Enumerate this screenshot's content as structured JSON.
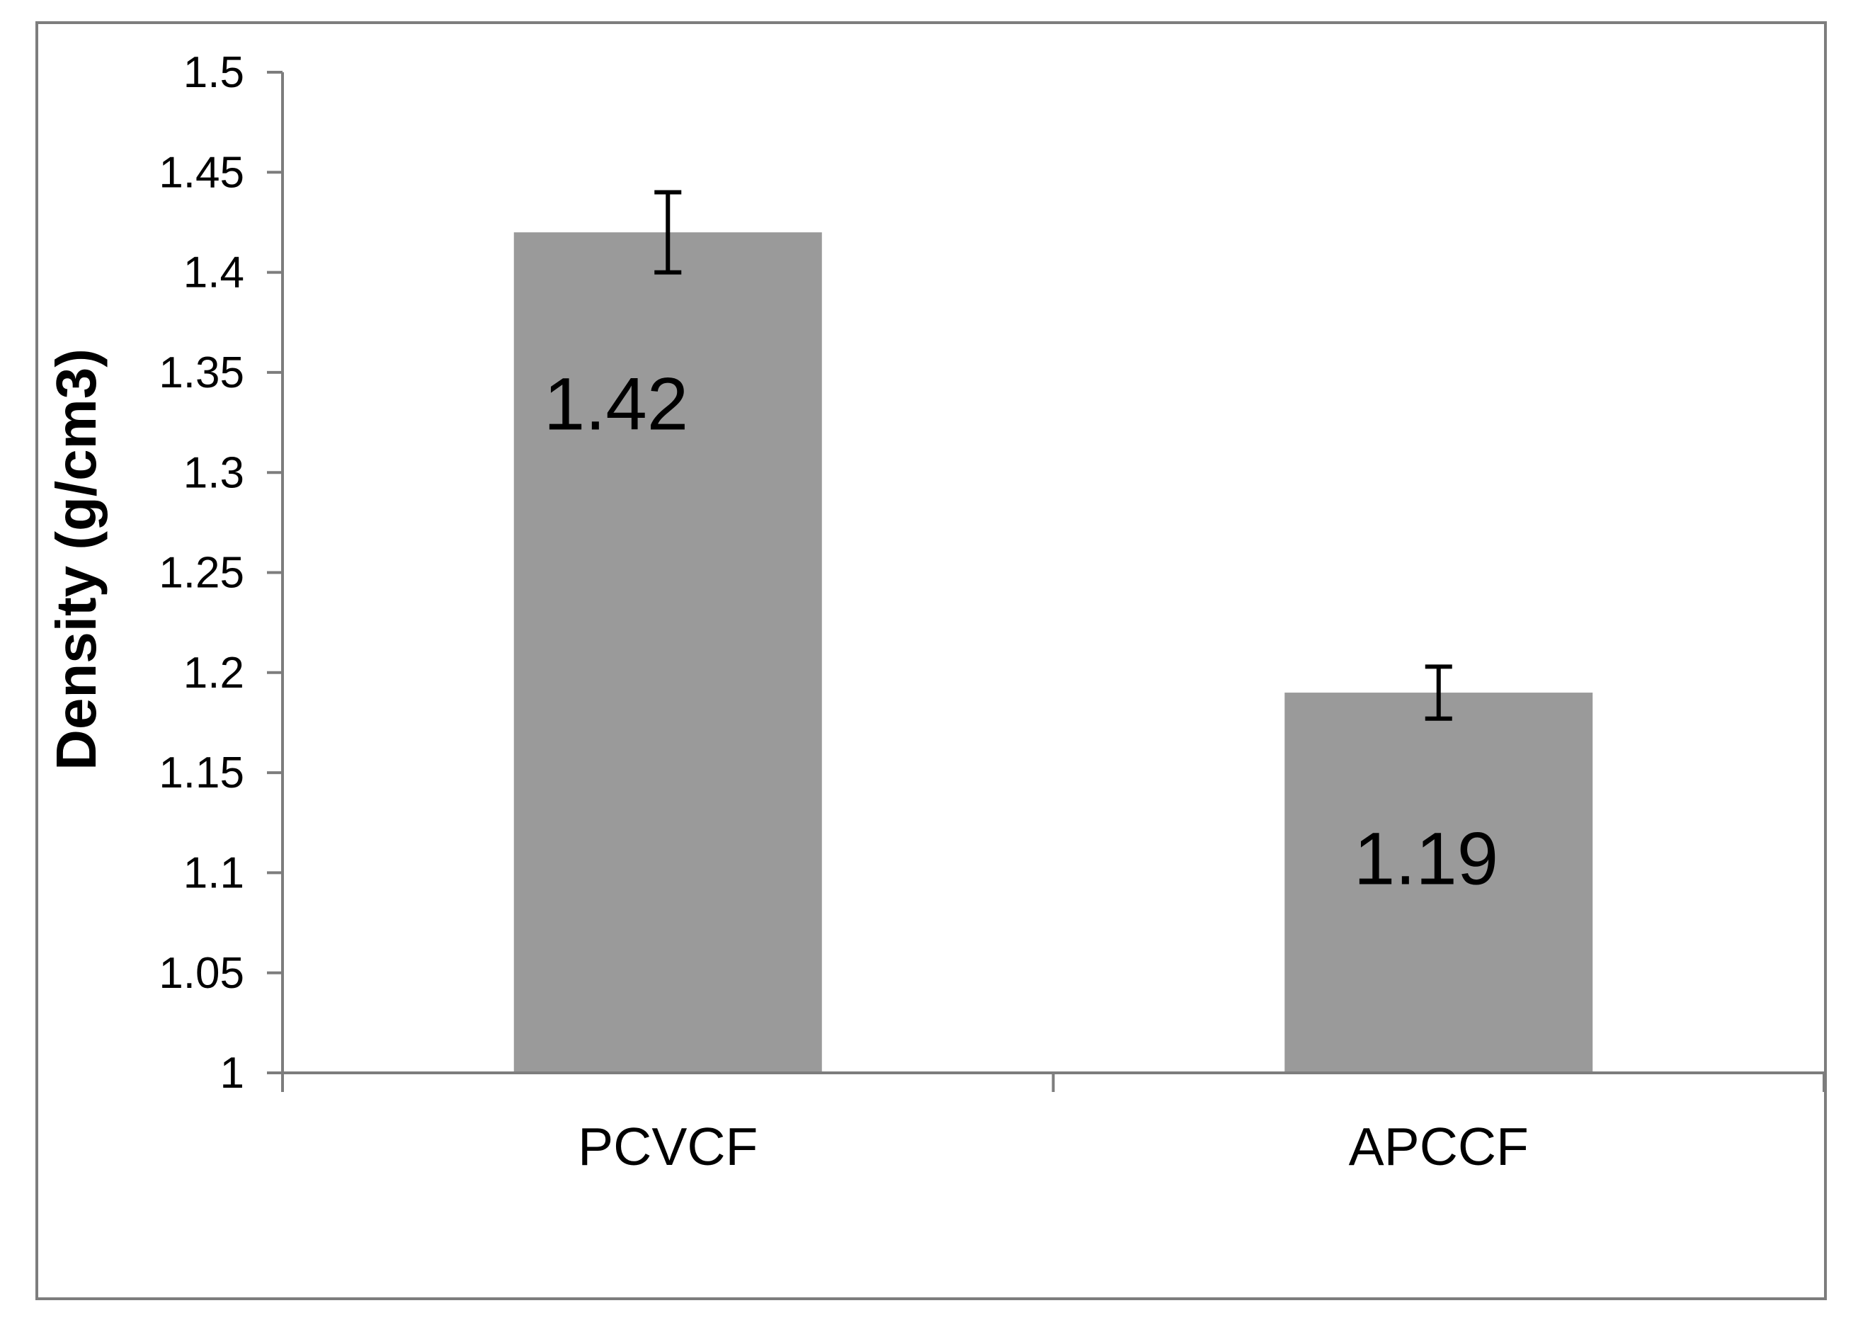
{
  "chart_data": {
    "type": "bar",
    "title": "",
    "categories": [
      "PCVCF",
      "APCCF"
    ],
    "values": [
      1.42,
      1.19
    ],
    "value_labels": [
      "1.42",
      "1.19"
    ],
    "error_plus": [
      0.02,
      0.013
    ],
    "error_minus": [
      0.02,
      0.013
    ],
    "xlabel": "",
    "ylabel": "Density (g/cm3)",
    "ylim": [
      1,
      1.5
    ],
    "ytick_step": 0.05,
    "ytick_labels": [
      "1",
      "1.05",
      "1.1",
      "1.15",
      "1.2",
      "1.25",
      "1.3",
      "1.35",
      "1.4",
      "1.45",
      "1.5"
    ],
    "grid": false,
    "legend": "none",
    "bar_color": "#9A9A9A",
    "axis_color": "#7D7D7D",
    "border_color": "#7D7D7D",
    "error_bar_color": "#000000",
    "text_color": "#000000"
  }
}
